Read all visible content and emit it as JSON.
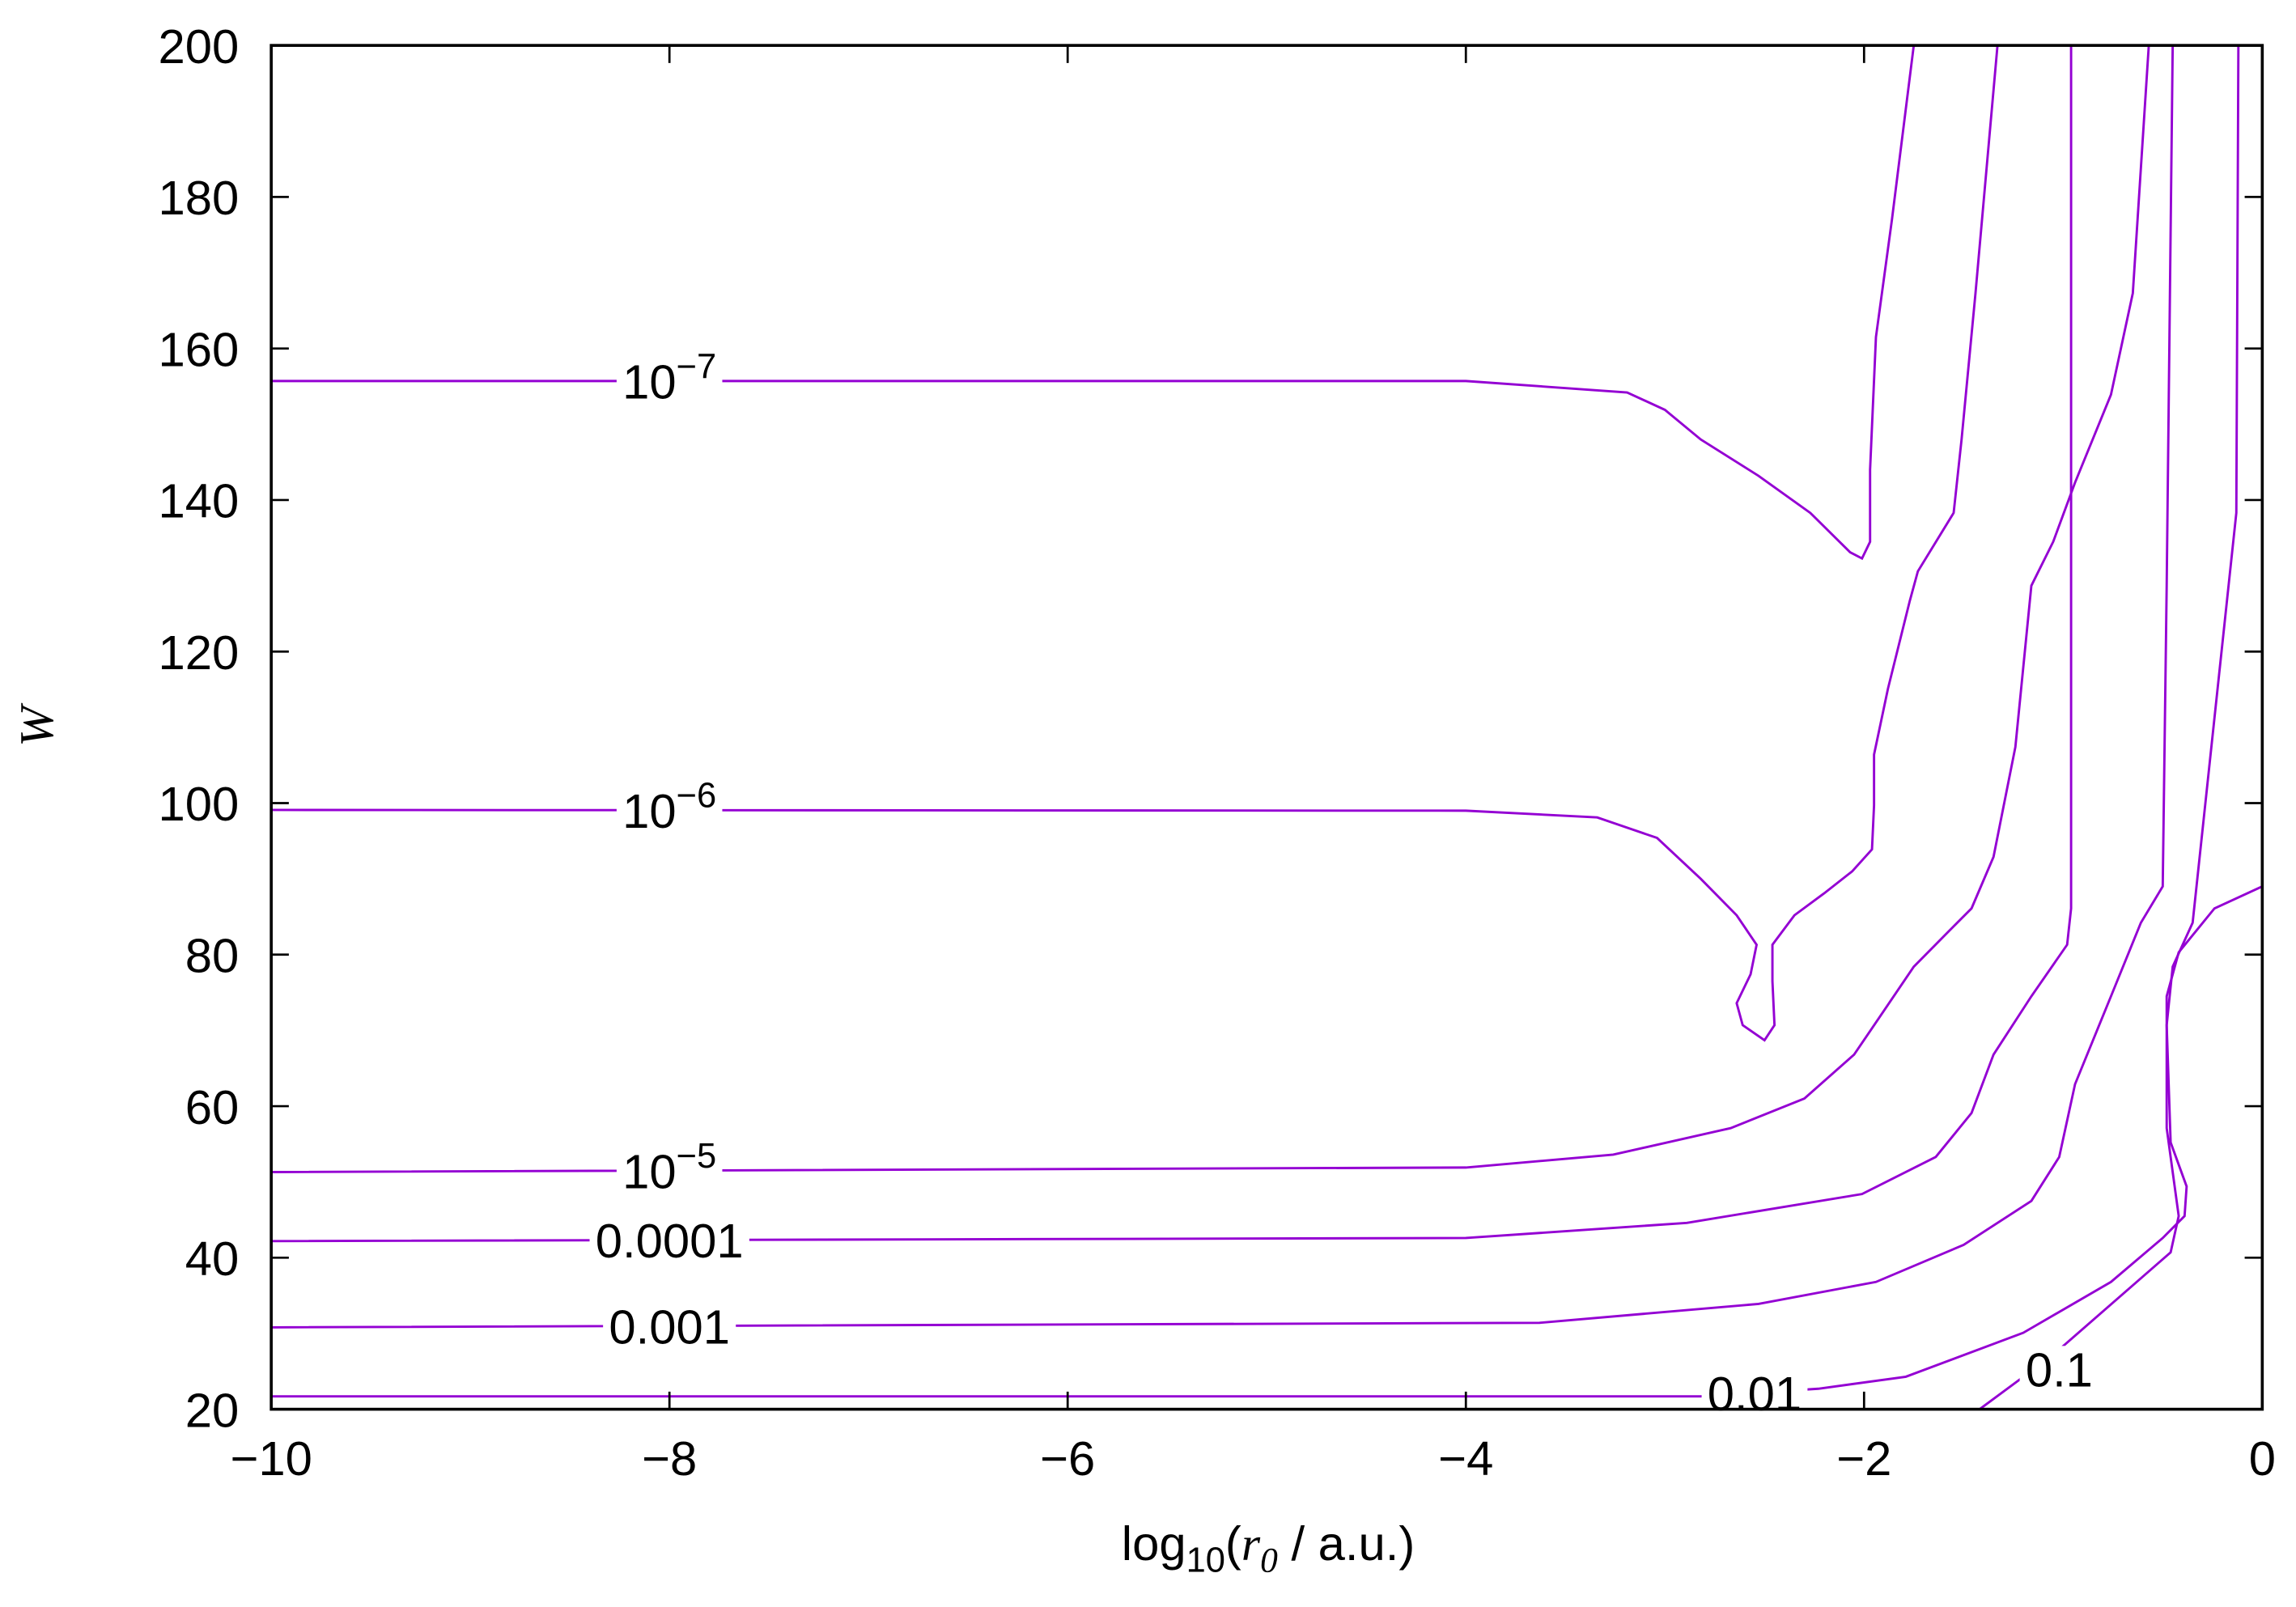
{
  "chart_data": {
    "type": "contour",
    "xlabel": [
      "log",
      "10",
      "(",
      "r",
      "0",
      " / a.u.)"
    ],
    "ylabel": "W",
    "xlim": [
      -10,
      0
    ],
    "ylim": [
      20,
      200
    ],
    "xticks": [
      {
        "value": -10,
        "label": "−10"
      },
      {
        "value": -8,
        "label": "−8"
      },
      {
        "value": -6,
        "label": "−6"
      },
      {
        "value": -4,
        "label": "−4"
      },
      {
        "value": -2,
        "label": "−2"
      },
      0
    ],
    "yticks": [
      20,
      40,
      60,
      80,
      100,
      120,
      140,
      160,
      180,
      200
    ],
    "color": "#9400d3",
    "series": [
      {
        "label": {
          "base": "10",
          "exponent": "−7"
        },
        "x": [
          -10,
          -4.0,
          -3.19,
          -3.0,
          -2.82,
          -2.53,
          -2.27,
          -2.07,
          -2.01,
          -1.97,
          -1.97,
          -1.94,
          -1.86,
          -1.75
        ],
        "y": [
          155.7,
          155.7,
          154.2,
          151.9,
          148,
          143.2,
          138.3,
          133.1,
          132.3,
          134.5,
          144,
          161.5,
          177,
          200
        ]
      },
      {
        "label": {
          "base": "10",
          "exponent": "−6"
        },
        "x": [
          -10,
          -4.0,
          -3.34,
          -3.04,
          -2.82,
          -2.64,
          -2.54,
          -2.57,
          -2.64,
          -2.61,
          -2.5,
          -2.45,
          -2.46,
          -2.46,
          -2.35,
          -2.2,
          -2.06,
          -1.96,
          -1.95,
          -1.95,
          -1.88,
          -1.77,
          -1.73,
          -1.55,
          -1.51,
          -1.44,
          -1.33
        ],
        "y": [
          99.1,
          99.0,
          98.1,
          95.4,
          90,
          85.2,
          81.3,
          77.4,
          73.6,
          70.7,
          68.7,
          70.7,
          76.5,
          81.3,
          85.2,
          88.1,
          91,
          93.9,
          99.7,
          106.4,
          115.1,
          126.7,
          130.6,
          138.3,
          148,
          167.3,
          200
        ]
      },
      {
        "label": {
          "base": "10",
          "exponent": "−5"
        },
        "x": [
          -10,
          -4.0,
          -3.26,
          -2.67,
          -2.3,
          -2.05,
          -1.9,
          -1.75,
          -1.57,
          -1.46,
          -1.35,
          -1.24,
          -1.16,
          -1.05,
          -0.94,
          -0.76,
          -0.65,
          -0.57
        ],
        "y": [
          51.3,
          51.9,
          53.6,
          57.1,
          61.0,
          66.8,
          72.6,
          78.4,
          83.2,
          86.1,
          92.9,
          107.4,
          128.7,
          134.5,
          142.3,
          153.9,
          167.3,
          200
        ]
      },
      {
        "label": "0.0001",
        "x": [
          -10,
          -4.0,
          -2.89,
          -2.01,
          -1.64,
          -1.46,
          -1.35,
          -1.16,
          -0.98,
          -0.96,
          -0.96,
          -0.96
        ],
        "y": [
          42.2,
          42.6,
          44.6,
          48.4,
          53.3,
          59.1,
          66.8,
          74.5,
          81.3,
          86.1,
          128.7,
          200
        ]
      },
      {
        "label": "0.001",
        "x": [
          -10,
          -3.63,
          -2.53,
          -1.94,
          -1.5,
          -1.16,
          -1.02,
          -0.94,
          -0.76,
          -0.61,
          -0.5,
          -0.48,
          -0.45
        ],
        "y": [
          30.8,
          31.4,
          33.9,
          36.8,
          41.7,
          47.5,
          53.3,
          62.9,
          74.5,
          84.2,
          89.0,
          128.7,
          200
        ]
      },
      {
        "label": "0.01",
        "x": [
          -10,
          -2.82,
          -2.23,
          -1.79,
          -1.2,
          -0.76,
          -0.5,
          -0.39,
          -0.38,
          -0.46,
          -0.48,
          -0.45,
          -0.35,
          -0.13,
          -0.12
        ],
        "y": [
          21.7,
          21.7,
          22.7,
          24.3,
          30.1,
          36.8,
          42.6,
          45.5,
          49.4,
          55.2,
          70.7,
          78.4,
          84.2,
          138.3,
          200
        ]
      },
      {
        "label": "0.1",
        "x": [
          -1.42,
          -1.05,
          -0.46,
          -0.42,
          -0.48,
          -0.48,
          -0.42,
          -0.24,
          0
        ],
        "y": [
          20,
          27.2,
          40.7,
          45.5,
          57.1,
          74.5,
          80.3,
          86.1,
          89.0
        ]
      }
    ]
  }
}
